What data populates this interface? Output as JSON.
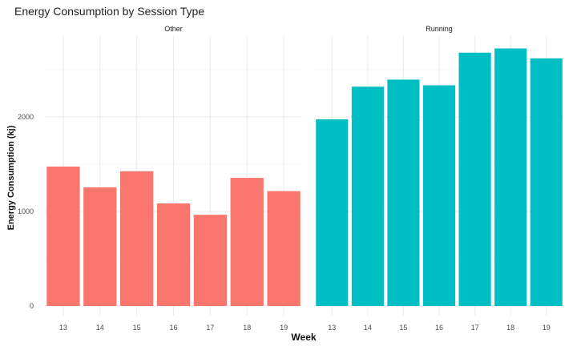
{
  "chart_data": {
    "type": "bar",
    "title": "Energy Consumption by Session Type",
    "xlabel": "Week",
    "ylabel": "Energy Consumption (kj)",
    "ylim": [
      0,
      2800
    ],
    "yticks": [
      0,
      1000,
      2000
    ],
    "grid": true,
    "legend": "none",
    "categories": [
      "13",
      "14",
      "15",
      "16",
      "17",
      "18",
      "19"
    ],
    "panels": [
      {
        "name": "Other",
        "color": "#F8766D",
        "values": [
          1475,
          1255,
          1425,
          1085,
          965,
          1355,
          1215
        ]
      },
      {
        "name": "Running",
        "color": "#00BFC4",
        "values": [
          1975,
          2320,
          2395,
          2335,
          2680,
          2725,
          2620
        ]
      }
    ]
  }
}
